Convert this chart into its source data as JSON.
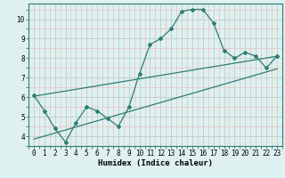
{
  "main_x": [
    0,
    1,
    2,
    3,
    4,
    5,
    6,
    7,
    8,
    9,
    10,
    11,
    12,
    13,
    14,
    15,
    16,
    17,
    18,
    19,
    20,
    21,
    22,
    23
  ],
  "main_y": [
    6.1,
    5.3,
    4.4,
    3.7,
    4.7,
    5.5,
    5.3,
    4.9,
    4.5,
    5.5,
    7.2,
    8.7,
    9.0,
    9.5,
    10.4,
    10.5,
    10.5,
    9.8,
    8.4,
    8.0,
    8.3,
    8.1,
    7.5,
    8.1
  ],
  "upper_line_x": [
    0,
    23
  ],
  "upper_line_y": [
    6.05,
    8.1
  ],
  "lower_line_x": [
    0,
    23
  ],
  "lower_line_y": [
    3.85,
    7.45
  ],
  "line_color": "#2d7d72",
  "bg_color": "#dff0f0",
  "grid_major_color": "#c8d8d0",
  "grid_minor_color": "#e8c8c8",
  "xlabel": "Humidex (Indice chaleur)",
  "xlim": [
    -0.5,
    23.5
  ],
  "ylim": [
    3.5,
    10.8
  ],
  "yticks": [
    4,
    5,
    6,
    7,
    8,
    9,
    10
  ],
  "xticks": [
    0,
    1,
    2,
    3,
    4,
    5,
    6,
    7,
    8,
    9,
    10,
    11,
    12,
    13,
    14,
    15,
    16,
    17,
    18,
    19,
    20,
    21,
    22,
    23
  ]
}
